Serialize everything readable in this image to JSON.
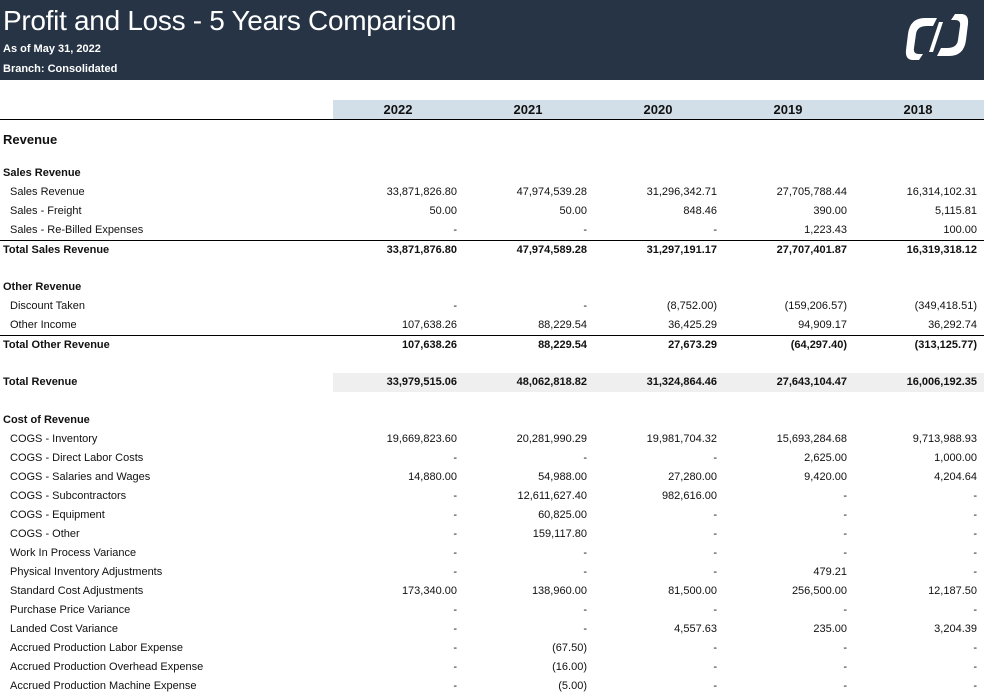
{
  "header": {
    "title": "Profit and Loss - 5 Years Comparison",
    "as_of": "As of May 31, 2022",
    "branch": "Branch: Consolidated"
  },
  "years": [
    "2022",
    "2021",
    "2020",
    "2019",
    "2018"
  ],
  "section_title": "Revenue",
  "rows": [
    {
      "type": "head",
      "label": "Sales Revenue",
      "values": []
    },
    {
      "type": "item",
      "label": "Sales Revenue",
      "values": [
        "33,871,826.80",
        "47,974,539.28",
        "31,296,342.71",
        "27,705,788.44",
        "16,314,102.31"
      ]
    },
    {
      "type": "item",
      "label": "Sales - Freight",
      "values": [
        "50.00",
        "50.00",
        "848.46",
        "390.00",
        "5,115.81"
      ]
    },
    {
      "type": "item",
      "label": "Sales - Re-Billed Expenses",
      "values": [
        "-",
        "-",
        "-",
        "1,223.43",
        "100.00"
      ]
    },
    {
      "type": "total",
      "label": "Total Sales Revenue",
      "values": [
        "33,871,876.80",
        "47,974,589.28",
        "31,297,191.17",
        "27,707,401.87",
        "16,319,318.12"
      ]
    },
    {
      "type": "blank",
      "label": "",
      "values": []
    },
    {
      "type": "head",
      "label": "Other Revenue",
      "values": []
    },
    {
      "type": "item",
      "label": "Discount Taken",
      "values": [
        "-",
        "-",
        "(8,752.00)",
        "(159,206.57)",
        "(349,418.51)"
      ]
    },
    {
      "type": "item",
      "label": "Other Income",
      "values": [
        "107,638.26",
        "88,229.54",
        "36,425.29",
        "94,909.17",
        "36,292.74"
      ]
    },
    {
      "type": "total",
      "label": "Total Other Revenue",
      "values": [
        "107,638.26",
        "88,229.54",
        "27,673.29",
        "(64,297.40)",
        "(313,125.77)"
      ]
    },
    {
      "type": "blank",
      "label": "",
      "values": []
    },
    {
      "type": "grand",
      "label": "Total Revenue",
      "values": [
        "33,979,515.06",
        "48,062,818.82",
        "31,324,864.46",
        "27,643,104.47",
        "16,006,192.35"
      ]
    },
    {
      "type": "blank",
      "label": "",
      "values": []
    },
    {
      "type": "head",
      "label": "Cost of Revenue",
      "values": []
    },
    {
      "type": "item",
      "label": "COGS - Inventory",
      "values": [
        "19,669,823.60",
        "20,281,990.29",
        "19,981,704.32",
        "15,693,284.68",
        "9,713,988.93"
      ]
    },
    {
      "type": "item",
      "label": "COGS - Direct Labor Costs",
      "values": [
        "-",
        "-",
        "-",
        "2,625.00",
        "1,000.00"
      ]
    },
    {
      "type": "item",
      "label": "COGS - Salaries and Wages",
      "values": [
        "14,880.00",
        "54,988.00",
        "27,280.00",
        "9,420.00",
        "4,204.64"
      ]
    },
    {
      "type": "item",
      "label": "COGS - Subcontractors",
      "values": [
        "-",
        "12,611,627.40",
        "982,616.00",
        "-",
        "-"
      ]
    },
    {
      "type": "item",
      "label": "COGS - Equipment",
      "values": [
        "-",
        "60,825.00",
        "-",
        "-",
        "-"
      ]
    },
    {
      "type": "item",
      "label": "COGS - Other",
      "values": [
        "-",
        "159,117.80",
        "-",
        "-",
        "-"
      ]
    },
    {
      "type": "item",
      "label": "Work In Process Variance",
      "values": [
        "-",
        "-",
        "-",
        "-",
        "-"
      ]
    },
    {
      "type": "item",
      "label": "Physical Inventory Adjustments",
      "values": [
        "-",
        "-",
        "-",
        "479.21",
        "-"
      ]
    },
    {
      "type": "item",
      "label": "Standard Cost Adjustments",
      "values": [
        "173,340.00",
        "138,960.00",
        "81,500.00",
        "256,500.00",
        "12,187.50"
      ]
    },
    {
      "type": "item",
      "label": "Purchase Price Variance",
      "values": [
        "-",
        "-",
        "-",
        "-",
        "-"
      ]
    },
    {
      "type": "item",
      "label": "Landed Cost Variance",
      "values": [
        "-",
        "-",
        "4,557.63",
        "235.00",
        "3,204.39"
      ]
    },
    {
      "type": "item",
      "label": "Accrued Production Labor Expense",
      "values": [
        "-",
        "(67.50)",
        "-",
        "-",
        "-"
      ]
    },
    {
      "type": "item",
      "label": "Accrued Production Overhead Expense",
      "values": [
        "-",
        "(16.00)",
        "-",
        "-",
        "-"
      ]
    },
    {
      "type": "item",
      "label": "Accrued Production Machine Expense",
      "values": [
        "-",
        "(5.00)",
        "-",
        "-",
        "-"
      ]
    }
  ]
}
